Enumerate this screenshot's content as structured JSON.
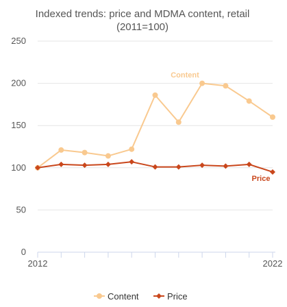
{
  "chart_data": {
    "type": "line",
    "title_line1": "Indexed trends: price and MDMA content, retail",
    "title_line2": "(2011=100)",
    "xlabel": "",
    "ylabel": "",
    "x": [
      2012,
      2013,
      2014,
      2015,
      2016,
      2017,
      2018,
      2019,
      2020,
      2021,
      2022
    ],
    "x_tick_labels": [
      "2012",
      "2022"
    ],
    "ylim": [
      0,
      250
    ],
    "y_ticks": [
      0,
      50,
      100,
      150,
      200,
      250
    ],
    "grid": true,
    "legend_position": "bottom-center",
    "series": [
      {
        "name": "Content",
        "color": "#f9c98f",
        "values": [
          100,
          121,
          118,
          114,
          122,
          186,
          154,
          200,
          197,
          179,
          160
        ]
      },
      {
        "name": "Price",
        "color": "#c9471c",
        "values": [
          100,
          104,
          103,
          104,
          107,
          101,
          101,
          103,
          102,
          104,
          95
        ]
      }
    ]
  }
}
